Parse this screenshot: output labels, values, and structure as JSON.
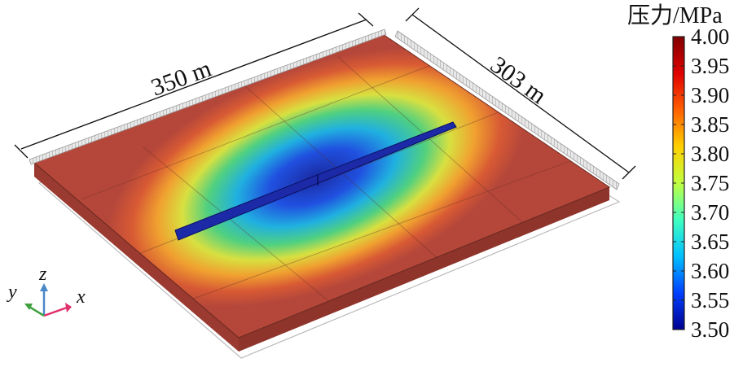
{
  "dimensions": {
    "length_label": "350 m",
    "width_label": "303 m"
  },
  "colorbar": {
    "title": "压力/MPa",
    "min": 3.5,
    "max": 4.0,
    "ticks": [
      "4.00",
      "3.95",
      "3.90",
      "3.85",
      "3.80",
      "3.75",
      "3.70",
      "3.65",
      "3.60",
      "3.55",
      "3.50"
    ],
    "colormap": [
      "#00008f",
      "#0040ff",
      "#00c0ff",
      "#40ffc0",
      "#c0ff40",
      "#ffd000",
      "#ff6000",
      "#e00000",
      "#800000"
    ]
  },
  "axes_triad": {
    "x": "x",
    "y": "y",
    "z": "z",
    "x_color": "#e0306a",
    "y_color": "#40a040",
    "z_color": "#4a88c8"
  }
}
